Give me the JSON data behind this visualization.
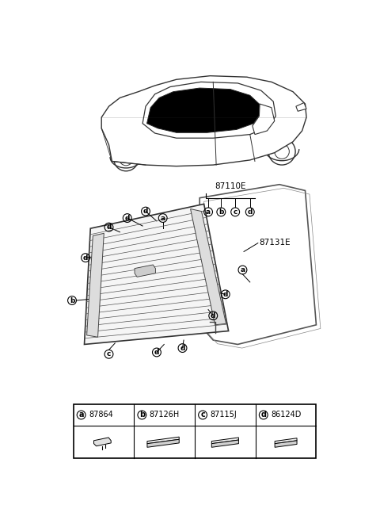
{
  "bg_color": "#ffffff",
  "parts": [
    {
      "label": "a",
      "part_num": "87864"
    },
    {
      "label": "b",
      "part_num": "87126H"
    },
    {
      "label": "c",
      "part_num": "87115J"
    },
    {
      "label": "d",
      "part_num": "86124D"
    }
  ],
  "ref_87110E": "87110E",
  "ref_87131E": "87131E",
  "line_color": "#333333",
  "glass_fill": "#f5f5f5",
  "seal_color": "#444444"
}
